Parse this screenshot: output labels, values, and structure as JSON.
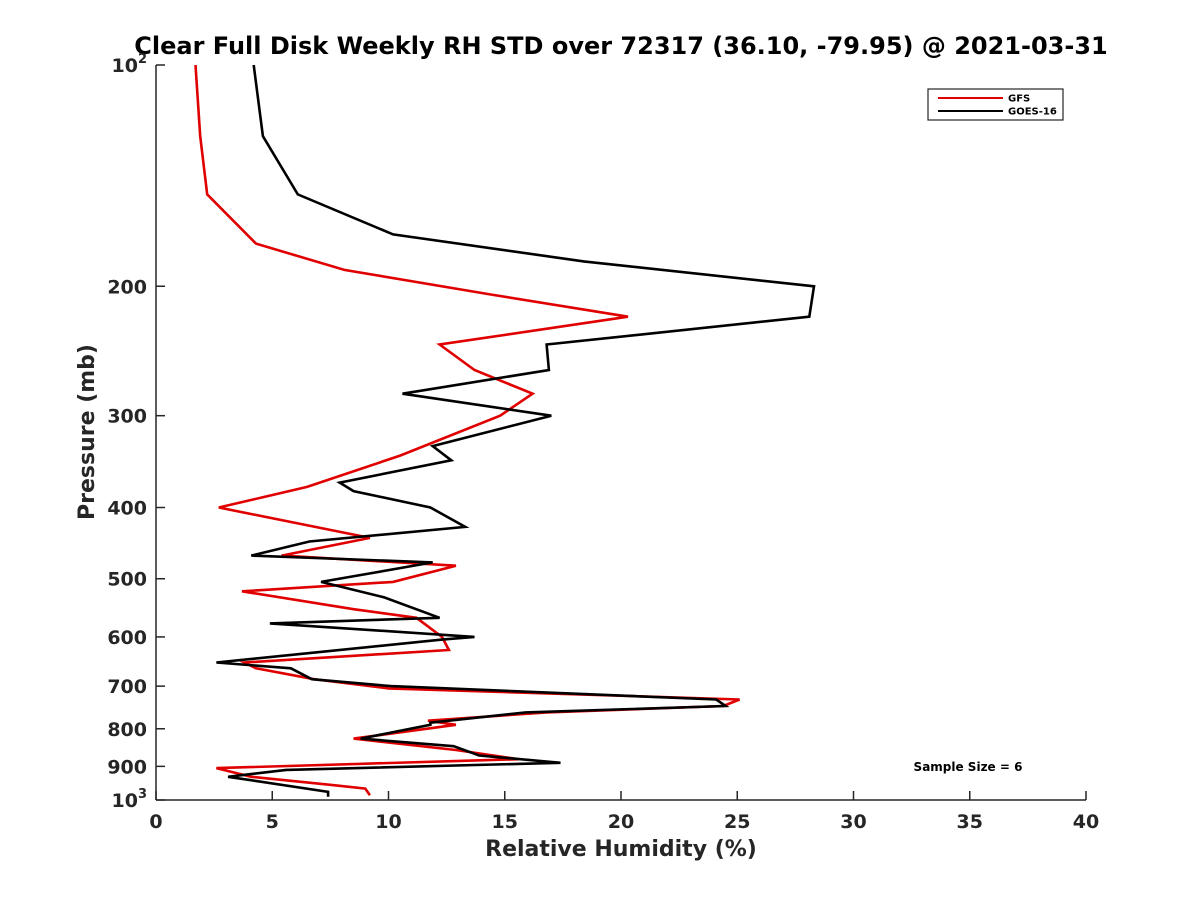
{
  "chart_data": {
    "type": "line",
    "title": "Clear Full Disk Weekly RH STD over 72317 (36.10, -79.95) @ 2021-03-31",
    "xlabel": "Relative Humidity (%)",
    "ylabel": "Pressure (mb)",
    "xlim": [
      0,
      40
    ],
    "ylim": [
      100,
      1000
    ],
    "y_scale": "log",
    "y_reversed": true,
    "x_ticks": [
      0,
      5,
      10,
      15,
      20,
      25,
      30,
      35,
      40
    ],
    "x_tick_labels": [
      "0",
      "5",
      "10",
      "15",
      "20",
      "25",
      "30",
      "35",
      "40"
    ],
    "y_ticks": [
      100,
      200,
      300,
      400,
      500,
      600,
      700,
      800,
      900,
      1000
    ],
    "y_tick_labels": [
      {
        "base": "10",
        "sup": "2"
      },
      {
        "base": "200"
      },
      {
        "base": "300"
      },
      {
        "base": "400"
      },
      {
        "base": "500"
      },
      {
        "base": "600"
      },
      {
        "base": "700"
      },
      {
        "base": "800"
      },
      {
        "base": "900"
      },
      {
        "base": "10",
        "sup": "3"
      }
    ],
    "grid": false,
    "legend_position": "top-right",
    "series": [
      {
        "name": "GFS",
        "color": "#e00000",
        "points": [
          [
            1.7,
            100
          ],
          [
            1.9,
            125
          ],
          [
            2.2,
            150
          ],
          [
            4.3,
            175
          ],
          [
            8.1,
            190
          ],
          [
            14.3,
            205
          ],
          [
            20.3,
            220
          ],
          [
            12.2,
            240
          ],
          [
            13.7,
            260
          ],
          [
            16.2,
            280
          ],
          [
            14.8,
            300
          ],
          [
            10.5,
            340
          ],
          [
            6.5,
            375
          ],
          [
            2.7,
            400
          ],
          [
            9.2,
            440
          ],
          [
            5.4,
            465
          ],
          [
            12.9,
            480
          ],
          [
            10.2,
            505
          ],
          [
            3.7,
            520
          ],
          [
            8.5,
            550
          ],
          [
            11.2,
            565
          ],
          [
            12.3,
            600
          ],
          [
            12.6,
            625
          ],
          [
            3.8,
            650
          ],
          [
            4.3,
            662
          ],
          [
            6.8,
            685
          ],
          [
            10.0,
            705
          ],
          [
            25.1,
            730
          ],
          [
            24.4,
            745
          ],
          [
            16.8,
            760
          ],
          [
            11.7,
            780
          ],
          [
            12.9,
            790
          ],
          [
            8.5,
            825
          ],
          [
            12.9,
            855
          ],
          [
            15.6,
            880
          ],
          [
            2.6,
            905
          ],
          [
            4.1,
            930
          ],
          [
            7.7,
            955
          ],
          [
            9.0,
            965
          ],
          [
            9.2,
            985
          ]
        ]
      },
      {
        "name": "GOES-16",
        "color": "#000000",
        "points": [
          [
            4.2,
            100
          ],
          [
            4.6,
            125
          ],
          [
            6.1,
            150
          ],
          [
            10.2,
            170
          ],
          [
            18.4,
            185
          ],
          [
            28.3,
            200
          ],
          [
            28.1,
            220
          ],
          [
            16.8,
            240
          ],
          [
            16.9,
            260
          ],
          [
            10.6,
            280
          ],
          [
            17.0,
            300
          ],
          [
            11.9,
            330
          ],
          [
            12.7,
            345
          ],
          [
            7.9,
            370
          ],
          [
            8.5,
            380
          ],
          [
            11.8,
            400
          ],
          [
            13.3,
            425
          ],
          [
            6.6,
            445
          ],
          [
            4.1,
            465
          ],
          [
            11.9,
            475
          ],
          [
            7.1,
            505
          ],
          [
            9.8,
            530
          ],
          [
            12.2,
            565
          ],
          [
            4.9,
            575
          ],
          [
            13.7,
            600
          ],
          [
            12.3,
            605
          ],
          [
            2.6,
            650
          ],
          [
            5.8,
            662
          ],
          [
            6.7,
            685
          ],
          [
            10.1,
            700
          ],
          [
            24.1,
            730
          ],
          [
            24.5,
            745
          ],
          [
            15.9,
            760
          ],
          [
            11.8,
            785
          ],
          [
            11.8,
            790
          ],
          [
            8.8,
            825
          ],
          [
            12.8,
            845
          ],
          [
            13.9,
            870
          ],
          [
            17.4,
            890
          ],
          [
            5.6,
            910
          ],
          [
            3.1,
            930
          ],
          [
            7.4,
            975
          ],
          [
            7.4,
            990
          ]
        ]
      }
    ],
    "annotations": [
      "Sample Size = 6"
    ]
  }
}
